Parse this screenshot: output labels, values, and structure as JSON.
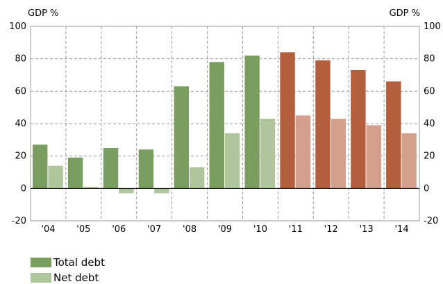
{
  "chart_data": {
    "type": "bar",
    "unit_label_left": "GDP %",
    "unit_label_right": "GDP %",
    "categories": [
      "'04",
      "'05",
      "'06",
      "'07",
      "'08",
      "'09",
      "'10",
      "'11",
      "'12",
      "'13",
      "'14"
    ],
    "series": [
      {
        "name": "Total debt",
        "values": [
          27,
          19,
          25,
          24,
          63,
          78,
          82,
          84,
          79,
          73,
          66
        ]
      },
      {
        "name": "Net debt",
        "values": [
          14,
          1,
          -3,
          -3,
          13,
          34,
          43,
          45,
          43,
          39,
          34
        ]
      }
    ],
    "ylim": [
      -20,
      100
    ],
    "yticks": [
      -20,
      0,
      20,
      40,
      60,
      80,
      100
    ],
    "grid": true,
    "legend_position": "bottom-left",
    "colors": {
      "total_actual": "#7a9e5f",
      "net_actual": "#afc69c",
      "total_forecast": "#b35f3e",
      "net_forecast": "#d4a08d",
      "grid": "#999999",
      "axis": "#000000"
    },
    "forecast_from_index": 7
  }
}
